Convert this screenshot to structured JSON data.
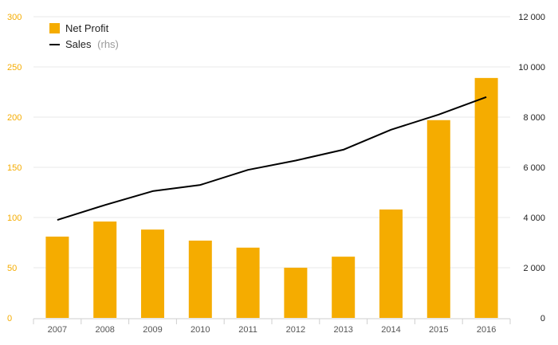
{
  "chart_data": {
    "type": "bar",
    "categories": [
      "2007",
      "2008",
      "2009",
      "2010",
      "2011",
      "2012",
      "2013",
      "2014",
      "2015",
      "2016"
    ],
    "series": [
      {
        "name": "Net Profit",
        "kind": "bar",
        "axis": "left",
        "color": "#f5ac00",
        "values": [
          81,
          96,
          88,
          77,
          70,
          50,
          61,
          108,
          197,
          239
        ]
      },
      {
        "name": "Sales",
        "kind": "line",
        "axis": "right",
        "color": "#000000",
        "values": [
          3900,
          4500,
          5050,
          5300,
          5900,
          6270,
          6700,
          7500,
          8100,
          8800
        ]
      }
    ],
    "y_left": {
      "ylim": [
        0,
        300
      ],
      "ticks": [
        "0",
        "50",
        "100",
        "150",
        "200",
        "250",
        "300"
      ],
      "color": "#f5ac00"
    },
    "y_right": {
      "ylim": [
        0,
        12000
      ],
      "ticks": [
        "0",
        "2 000",
        "4 000",
        "6 000",
        "8 000",
        "10 000",
        "12 000"
      ]
    },
    "legend": {
      "position": "top-left",
      "items": [
        {
          "label": "Net Profit",
          "note": ""
        },
        {
          "label": "Sales",
          "note": "(rhs)"
        }
      ]
    },
    "grid": true
  }
}
